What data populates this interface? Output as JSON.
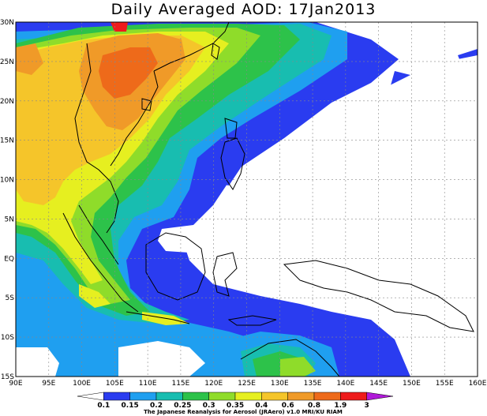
{
  "title": "Daily Averaged AOD: 17Jan2013",
  "map": {
    "lon_labels": [
      "90E",
      "95E",
      "100E",
      "105E",
      "110E",
      "115E",
      "120E",
      "125E",
      "130E",
      "135E",
      "140E",
      "145E",
      "150E",
      "155E",
      "160E"
    ],
    "lat_labels": [
      "30N",
      "25N",
      "20N",
      "15N",
      "10N",
      "5N",
      "EQ",
      "5S",
      "10S",
      "15S"
    ]
  },
  "colorbar": {
    "levels": [
      "0.1",
      "0.15",
      "0.2",
      "0.25",
      "0.3",
      "0.35",
      "0.4",
      "0.6",
      "0.8",
      "1.9",
      "3"
    ],
    "colors": [
      "#ffffff",
      "#2a3cf0",
      "#1f9ff0",
      "#18bdb0",
      "#2dc24a",
      "#8fdc2a",
      "#e6ef20",
      "#f5c52a",
      "#f09a28",
      "#ee6a1a",
      "#ee1b1b",
      "#b01ad8"
    ],
    "credit": "The Japanese Reanalysis for Aerosol (JRAero) v1.0 MRI/KU RIAM"
  },
  "palette": {
    "ocean_low": "#ffffff",
    "blue": "#2a3cf0",
    "lightblue": "#1f9ff0",
    "teal": "#18bdb0",
    "green": "#2dc24a",
    "lime": "#8fdc2a",
    "yellow": "#e6ef20",
    "lightorange": "#f5c52a",
    "orange": "#f09a28",
    "darkorange": "#ee6a1a",
    "red": "#ee1b1b"
  }
}
